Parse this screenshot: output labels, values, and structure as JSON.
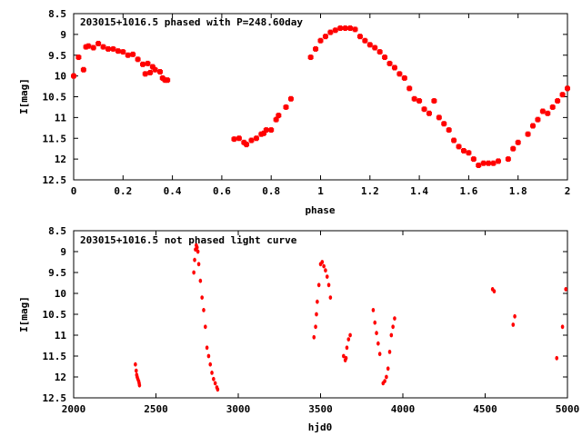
{
  "chart_data": [
    {
      "type": "scatter",
      "title": "203015+1016.5 phased with P=248.60day",
      "xlabel": "phase",
      "ylabel": "I[mag]",
      "xlim": [
        0,
        2
      ],
      "ylim": [
        12.5,
        8.5
      ],
      "xticks": [
        0,
        0.2,
        0.4,
        0.6,
        0.8,
        1,
        1.2,
        1.4,
        1.6,
        1.8,
        2
      ],
      "xtick_labels": [
        "0",
        "0.2",
        "0.4",
        "0.6",
        "0.8",
        "1",
        "1.2",
        "1.4",
        "1.6",
        "1.8",
        "2"
      ],
      "yticks": [
        8.5,
        9,
        9.5,
        10,
        10.5,
        11,
        11.5,
        12,
        12.5
      ],
      "ytick_labels": [
        "8.5",
        "9",
        "9.5",
        "10",
        "10.5",
        "11",
        "11.5",
        "12",
        "12.5"
      ],
      "color": "#ff0000",
      "x": [
        0.0,
        0.02,
        0.04,
        0.05,
        0.06,
        0.08,
        0.1,
        0.12,
        0.14,
        0.16,
        0.18,
        0.2,
        0.22,
        0.24,
        0.26,
        0.28,
        0.29,
        0.3,
        0.31,
        0.32,
        0.33,
        0.35,
        0.36,
        0.37,
        0.38,
        0.65,
        0.67,
        0.69,
        0.7,
        0.72,
        0.74,
        0.76,
        0.77,
        0.78,
        0.8,
        0.82,
        0.83,
        0.86,
        0.88,
        0.96,
        0.98,
        1.0,
        1.02,
        1.04,
        1.06,
        1.08,
        1.1,
        1.12,
        1.14,
        1.16,
        1.18,
        1.2,
        1.22,
        1.24,
        1.26,
        1.28,
        1.3,
        1.32,
        1.34,
        1.36,
        1.38,
        1.4,
        1.42,
        1.44,
        1.46,
        1.48,
        1.5,
        1.52,
        1.54,
        1.56,
        1.58,
        1.6,
        1.62,
        1.64,
        1.66,
        1.68,
        1.7,
        1.72,
        1.76,
        1.78,
        1.8,
        1.84,
        1.86,
        1.88,
        1.9,
        1.92,
        1.94,
        1.96,
        1.98,
        2.0
      ],
      "y": [
        10.0,
        9.55,
        9.85,
        9.3,
        9.28,
        9.32,
        9.22,
        9.3,
        9.35,
        9.35,
        9.4,
        9.42,
        9.5,
        9.48,
        9.6,
        9.72,
        9.95,
        9.7,
        9.92,
        9.78,
        9.85,
        9.9,
        10.05,
        10.1,
        10.1,
        11.52,
        11.5,
        11.6,
        11.65,
        11.55,
        11.5,
        11.4,
        11.38,
        11.3,
        11.3,
        11.05,
        10.95,
        10.75,
        10.55,
        9.55,
        9.35,
        9.15,
        9.05,
        8.95,
        8.9,
        8.85,
        8.85,
        8.85,
        8.88,
        9.05,
        9.15,
        9.25,
        9.32,
        9.42,
        9.55,
        9.7,
        9.8,
        9.95,
        10.05,
        10.3,
        10.55,
        10.6,
        10.8,
        10.9,
        10.6,
        11.0,
        11.15,
        11.3,
        11.55,
        11.7,
        11.8,
        11.85,
        12.0,
        12.15,
        12.1,
        12.1,
        12.1,
        12.05,
        12.0,
        11.75,
        11.6,
        11.4,
        11.2,
        11.05,
        10.85,
        10.9,
        10.75,
        10.6,
        10.45,
        10.3
      ]
    },
    {
      "type": "scatter",
      "title": "203015+1016.5 not phased light curve",
      "xlabel": "hjd0",
      "ylabel": "I[mag]",
      "xlim": [
        2000,
        5000
      ],
      "ylim": [
        12.5,
        8.5
      ],
      "xticks": [
        2000,
        2500,
        3000,
        3500,
        4000,
        4500,
        5000
      ],
      "xtick_labels": [
        "2000",
        "2500",
        "3000",
        "3500",
        "4000",
        "4500",
        "5000"
      ],
      "yticks": [
        8.5,
        9,
        9.5,
        10,
        10.5,
        11,
        11.5,
        12,
        12.5
      ],
      "ytick_labels": [
        "8.5",
        "9",
        "9.5",
        "10",
        "10.5",
        "11",
        "11.5",
        "12",
        "12.5"
      ],
      "color": "#ff0000",
      "x": [
        2375,
        2380,
        2383,
        2386,
        2390,
        2395,
        2398,
        2400,
        2730,
        2735,
        2740,
        2745,
        2750,
        2755,
        2760,
        2770,
        2780,
        2790,
        2800,
        2810,
        2820,
        2830,
        2840,
        2850,
        2860,
        2870,
        2875,
        3460,
        3470,
        3475,
        3480,
        3490,
        3500,
        3510,
        3520,
        3530,
        3540,
        3550,
        3560,
        3640,
        3650,
        3655,
        3660,
        3670,
        3680,
        3820,
        3830,
        3840,
        3850,
        3860,
        3880,
        3890,
        3900,
        3910,
        3920,
        3930,
        3940,
        3950,
        4545,
        4555,
        4670,
        4680,
        4935,
        4970,
        4990
      ],
      "y": [
        11.7,
        11.85,
        11.95,
        12.0,
        12.05,
        12.1,
        12.15,
        12.2,
        9.5,
        9.2,
        8.95,
        8.85,
        8.9,
        9.0,
        9.3,
        9.7,
        10.1,
        10.4,
        10.8,
        11.3,
        11.5,
        11.7,
        11.9,
        12.05,
        12.15,
        12.25,
        12.3,
        11.05,
        10.8,
        10.5,
        10.2,
        9.8,
        9.3,
        9.25,
        9.35,
        9.45,
        9.6,
        9.8,
        10.1,
        11.5,
        11.6,
        11.55,
        11.3,
        11.1,
        11.0,
        10.4,
        10.7,
        10.95,
        11.2,
        11.45,
        12.15,
        12.1,
        12.0,
        11.8,
        11.4,
        11.0,
        10.8,
        10.6,
        9.9,
        9.95,
        10.75,
        10.55,
        11.55,
        10.8,
        9.9
      ]
    }
  ]
}
